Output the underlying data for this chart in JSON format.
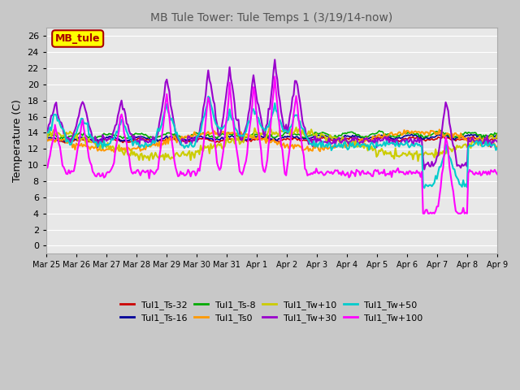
{
  "title": "MB Tule Tower: Tule Temps 1 (3/19/14-now)",
  "ylabel": "Temperature (C)",
  "ylim": [
    -1,
    27
  ],
  "yticks": [
    0,
    2,
    4,
    6,
    8,
    10,
    12,
    14,
    16,
    18,
    20,
    22,
    24,
    26
  ],
  "annotation_box": {
    "text": "MB_tule",
    "facecolor": "yellow",
    "edgecolor": "#aa0000",
    "textcolor": "#aa0000"
  },
  "series": [
    {
      "label": "Tul1_Ts-32",
      "color": "#cc0000"
    },
    {
      "label": "Tul1_Ts-16",
      "color": "#000099"
    },
    {
      "label": "Tul1_Ts-8",
      "color": "#00aa00"
    },
    {
      "label": "Tul1_Ts0",
      "color": "#ff9900"
    },
    {
      "label": "Tul1_Tw+10",
      "color": "#cccc00"
    },
    {
      "label": "Tul1_Tw+30",
      "color": "#9900cc"
    },
    {
      "label": "Tul1_Tw+50",
      "color": "#00cccc"
    },
    {
      "label": "Tul1_Tw+100",
      "color": "#ff00ff"
    }
  ],
  "x_tick_labels": [
    "Mar 25",
    "Mar 26",
    "Mar 27",
    "Mar 28",
    "Mar 29",
    "Mar 30",
    "Mar 31",
    "Apr 1",
    "Apr 2",
    "Apr 3",
    "Apr 4",
    "Apr 5",
    "Apr 6",
    "Apr 7",
    "Apr 8",
    "Apr 9"
  ],
  "legend_ncol": 4,
  "fig_facecolor": "#c8c8c8",
  "ax_facecolor": "#e8e8e8"
}
